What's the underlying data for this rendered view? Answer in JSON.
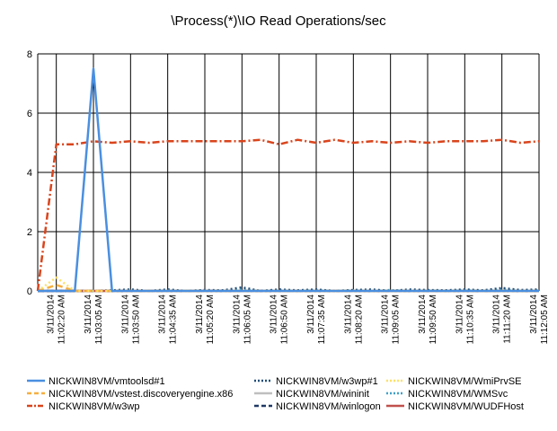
{
  "chart_data": {
    "type": "line",
    "title": "\\Process(*)\\IO Read Operations/sec",
    "xlabel": "",
    "ylabel": "",
    "ylim": [
      0,
      8
    ],
    "yticks": [
      0,
      2,
      4,
      6,
      8
    ],
    "grid": true,
    "legend_position": "bottom",
    "x": [
      "11:01:55 AM",
      "11:02:20 AM",
      "11:02:42 AM",
      "11:03:05 AM",
      "11:03:28 AM",
      "11:03:50 AM",
      "11:04:13 AM",
      "11:04:35 AM",
      "11:04:58 AM",
      "11:05:20 AM",
      "11:05:43 AM",
      "11:06:05 AM",
      "11:06:28 AM",
      "11:06:50 AM",
      "11:07:13 AM",
      "11:07:35 AM",
      "11:07:58 AM",
      "11:08:20 AM",
      "11:08:43 AM",
      "11:09:05 AM",
      "11:09:28 AM",
      "11:09:50 AM",
      "11:10:13 AM",
      "11:10:35 AM",
      "11:10:58 AM",
      "11:11:20 AM",
      "11:11:43 AM",
      "11:12:05 AM"
    ],
    "x_tick_labels": [
      {
        "date": "3/11/2014",
        "time": "11:02:20 AM"
      },
      {
        "date": "3/11/2014",
        "time": "11:03:05 AM"
      },
      {
        "date": "3/11/2014",
        "time": "11:03:50 AM"
      },
      {
        "date": "3/11/2014",
        "time": "11:04:35 AM"
      },
      {
        "date": "3/11/2014",
        "time": "11:05:20 AM"
      },
      {
        "date": "3/11/2014",
        "time": "11:06:05 AM"
      },
      {
        "date": "3/11/2014",
        "time": "11:06:50 AM"
      },
      {
        "date": "3/11/2014",
        "time": "11:07:35 AM"
      },
      {
        "date": "3/11/2014",
        "time": "11:08:20 AM"
      },
      {
        "date": "3/11/2014",
        "time": "11:09:05 AM"
      },
      {
        "date": "3/11/2014",
        "time": "11:09:50 AM"
      },
      {
        "date": "3/11/2014",
        "time": "11:10:35 AM"
      },
      {
        "date": "3/11/2014",
        "time": "11:11:20 AM"
      },
      {
        "date": "3/11/2014",
        "time": "11:12:05 AM"
      }
    ],
    "series": [
      {
        "name": "NICKWIN8VM/vmtoolsd#1",
        "color": "#4a8fe0",
        "style": "solid",
        "values": [
          0,
          0,
          0,
          7.5,
          0,
          0,
          0,
          0,
          0,
          0,
          0,
          0,
          0,
          0,
          0,
          0,
          0,
          0,
          0,
          0,
          0,
          0,
          0,
          0,
          0,
          0,
          0,
          0
        ]
      },
      {
        "name": "NICKWIN8VM/vstest.discoveryengine.x86",
        "color": "#f5b041",
        "style": "dash",
        "values": [
          0,
          0.2,
          0,
          0,
          0,
          0,
          0,
          0,
          0,
          0,
          0,
          0,
          0,
          0,
          0,
          0,
          0,
          0,
          0,
          0,
          0,
          0,
          0,
          0,
          0,
          0,
          0,
          0
        ]
      },
      {
        "name": "NICKWIN8VM/w3wp",
        "color": "#d9441c",
        "style": "dashdot",
        "values": [
          0,
          4.95,
          4.95,
          5.05,
          5.0,
          5.05,
          5.0,
          5.05,
          5.05,
          5.05,
          5.05,
          5.05,
          5.1,
          4.95,
          5.1,
          5.0,
          5.1,
          5.0,
          5.05,
          5.0,
          5.05,
          5.0,
          5.05,
          5.05,
          5.05,
          5.1,
          5.0,
          5.05
        ]
      },
      {
        "name": "NICKWIN8VM/w3wp#1",
        "color": "#1f4e79",
        "style": "dot",
        "values": [
          0,
          0,
          0,
          0,
          0.02,
          0.05,
          0,
          0.05,
          0,
          0.03,
          0.02,
          0.12,
          0,
          0.05,
          0.02,
          0.05,
          0,
          0.03,
          0.05,
          0,
          0.05,
          0.03,
          0.02,
          0.05,
          0.02,
          0.1,
          0.03,
          0.05
        ]
      },
      {
        "name": "NICKWIN8VM/wininit",
        "color": "#bfbfbf",
        "style": "solid",
        "values": [
          0,
          0,
          0,
          0,
          0,
          0,
          0,
          0,
          0,
          0,
          0,
          0,
          0,
          0,
          0,
          0,
          0,
          0,
          0,
          0,
          0,
          0,
          0,
          0,
          0,
          0,
          0,
          0
        ]
      },
      {
        "name": "NICKWIN8VM/winlogon",
        "color": "#1f3864",
        "style": "dash",
        "values": [
          0,
          0,
          0,
          0,
          0,
          0,
          0,
          0,
          0,
          0,
          0,
          0,
          0,
          0,
          0,
          0,
          0,
          0,
          0,
          0,
          0,
          0,
          0,
          0,
          0,
          0,
          0,
          0
        ]
      },
      {
        "name": "NICKWIN8VM/WmiPrvSE",
        "color": "#ffe066",
        "style": "dot",
        "values": [
          0,
          0.45,
          0,
          0,
          0,
          0,
          0,
          0,
          0,
          0,
          0,
          0,
          0,
          0,
          0,
          0,
          0,
          0,
          0,
          0,
          0,
          0,
          0,
          0,
          0,
          0,
          0,
          0
        ]
      },
      {
        "name": "NICKWIN8VM/WMSvc",
        "color": "#3fa0c8",
        "style": "dot",
        "values": [
          0,
          0,
          0,
          0,
          0,
          0.03,
          0,
          0.03,
          0,
          0.02,
          0,
          0.05,
          0,
          0.02,
          0,
          0.03,
          0,
          0.02,
          0,
          0.03,
          0,
          0.02,
          0,
          0.03,
          0,
          0.05,
          0,
          0.02
        ]
      },
      {
        "name": "NICKWIN8VM/WUDFHost",
        "color": "#c0504d",
        "style": "solid",
        "values": [
          0,
          0,
          0,
          0,
          0,
          0,
          0,
          0,
          0,
          0,
          0,
          0,
          0,
          0,
          0,
          0,
          0,
          0,
          0,
          0,
          0,
          0,
          0,
          0,
          0,
          0,
          0,
          0
        ]
      }
    ]
  }
}
